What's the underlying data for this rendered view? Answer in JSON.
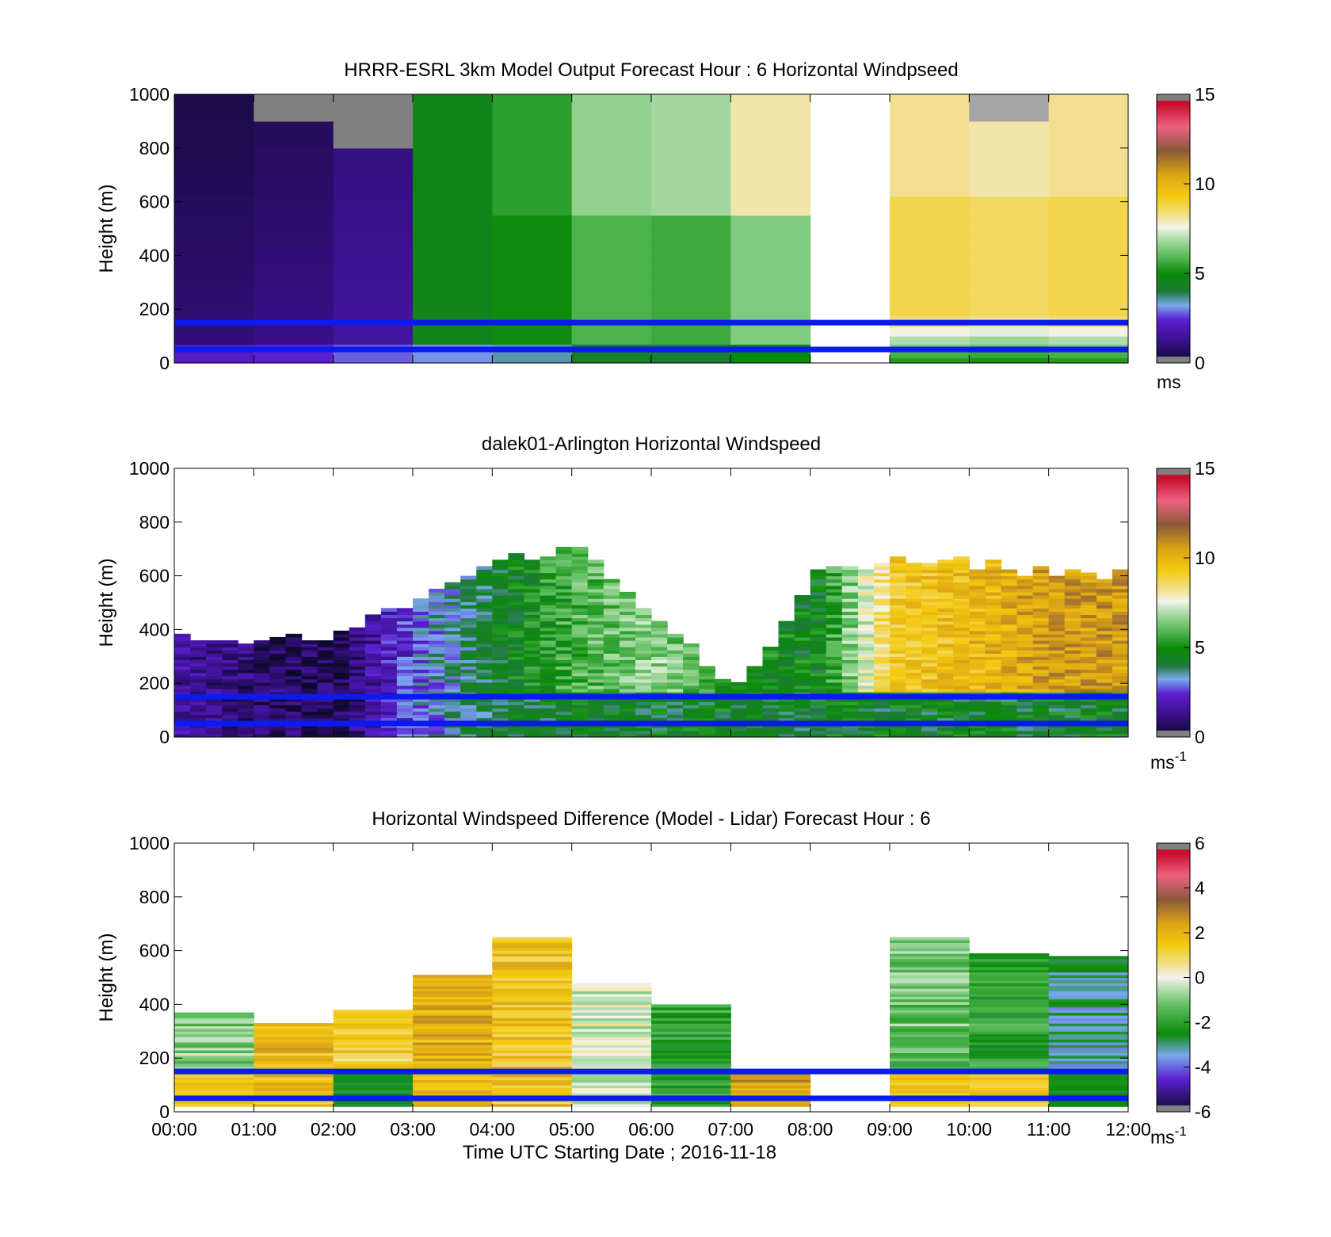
{
  "figure": {
    "xlabel": "Time UTC  Starting Date ; 2016-11-18",
    "x_ticks": [
      "00:00",
      "01:00",
      "02:00",
      "03:00",
      "04:00",
      "05:00",
      "06:00",
      "07:00",
      "08:00",
      "09:00",
      "10:00",
      "11:00",
      "12:00"
    ],
    "y_ticks": [
      "0",
      "200",
      "400",
      "600",
      "800",
      "1000"
    ],
    "ylabel": "Height (m)",
    "reference_lines_m": [
      150,
      50
    ],
    "reference_line_color": "#0a1af0"
  },
  "chart_data": [
    {
      "type": "heatmap",
      "title": "HRRR-ESRL 3km Model Output   Forecast Hour : 6 Horizontal Windpseed",
      "ylabel": "Height (m)",
      "xlim": [
        "00:00",
        "12:00"
      ],
      "ylim": [
        0,
        1000
      ],
      "colorbar": {
        "ticks": [
          "0",
          "5",
          "10",
          "15"
        ],
        "range": [
          0,
          15
        ],
        "unit_label": "ms"
      },
      "hour_columns_mean_speed_ms": [
        1.0,
        1.2,
        1.6,
        4.6,
        5.0,
        5.8,
        5.6,
        6.4,
        null,
        8.8,
        8.6,
        8.8
      ],
      "missing_columns": [
        "08:00"
      ]
    },
    {
      "type": "heatmap",
      "title": "dalek01-Arlington  Horizontal Windspeed",
      "ylabel": "Height (m)",
      "xlim": [
        "00:00",
        "12:00"
      ],
      "ylim": [
        0,
        1000
      ],
      "colorbar": {
        "ticks": [
          "0",
          "5",
          "10",
          "15"
        ],
        "range": [
          0,
          15
        ],
        "unit_label": "ms",
        "unit_exponent": "-1"
      },
      "data_top_height_m": [
        370,
        340,
        380,
        510,
        650,
        700,
        430,
        180,
        600,
        650,
        640,
        600
      ],
      "hourly_mean_speed_ms": [
        1.5,
        0.8,
        0.6,
        3.0,
        4.4,
        5.8,
        6.6,
        5.0,
        4.6,
        9.2,
        9.8,
        10.6
      ]
    },
    {
      "type": "heatmap",
      "title": "Horizontal Windspeed Difference (Model - Lidar) Forecast Hour : 6",
      "ylabel": "Height (m)",
      "xlabel": "Time UTC  Starting Date ; 2016-11-18",
      "xlim": [
        "00:00",
        "12:00"
      ],
      "ylim": [
        0,
        1000
      ],
      "colorbar": {
        "ticks": [
          "6",
          "4",
          "2",
          "0",
          "-2",
          "-4",
          "-6"
        ],
        "range": [
          -6,
          6
        ],
        "unit_label": "ms",
        "unit_exponent": "-1"
      },
      "data_top_height_m": [
        370,
        330,
        380,
        510,
        650,
        480,
        400,
        160,
        null,
        650,
        590,
        580
      ],
      "hourly_mean_difference_ms": [
        -1.0,
        1.8,
        1.2,
        2.0,
        1.6,
        -0.2,
        -2.0,
        2.6,
        null,
        -1.2,
        -2.0,
        -3.0
      ]
    }
  ]
}
